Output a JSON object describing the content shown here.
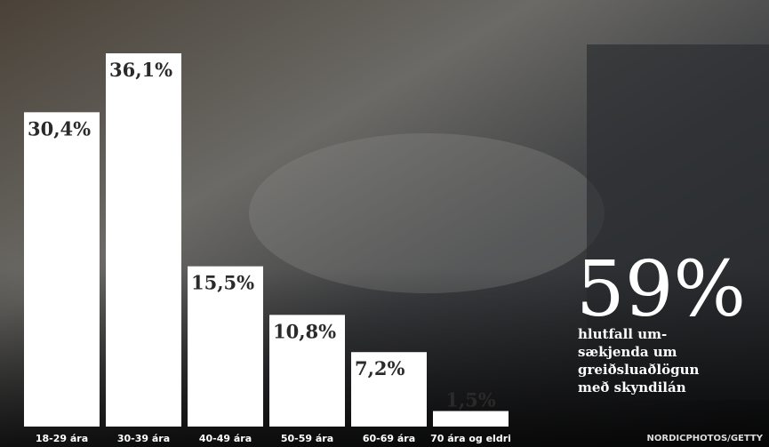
{
  "chart_data": {
    "type": "bar",
    "categories": [
      "18-29 ára",
      "30-39 ára",
      "40-49 ára",
      "50-59 ára",
      "60-69 ára",
      "70 ára og eldri"
    ],
    "values": [
      30.4,
      36.1,
      15.5,
      10.8,
      7.2,
      1.5
    ],
    "value_labels": [
      "30,4%",
      "36,1%",
      "15,5%",
      "10,8%",
      "7,2%",
      "1,5%"
    ],
    "color": "#ffffff",
    "annotations": {
      "headline": "59%",
      "caption": [
        "hlutfall um-",
        "sækjenda um",
        "greiðsluaðlögun",
        "með skyndilán"
      ],
      "credit": "NORDICPHOTOS/GETTY"
    }
  }
}
